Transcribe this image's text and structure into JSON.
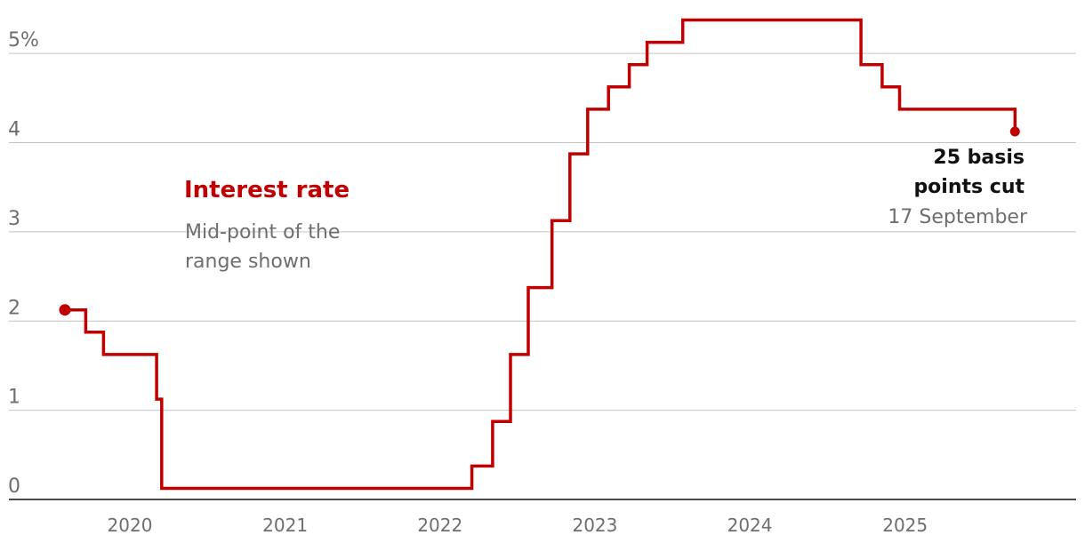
{
  "chart_data": {
    "type": "line",
    "step": true,
    "title": "",
    "xlabel": "",
    "ylabel": "",
    "ylim": [
      0,
      5.4
    ],
    "xlim": [
      "2019-03-01",
      "2026-03-01"
    ],
    "yticks": [
      {
        "value": 0,
        "label": "0"
      },
      {
        "value": 1,
        "label": "1"
      },
      {
        "value": 2,
        "label": "2"
      },
      {
        "value": 3,
        "label": "3"
      },
      {
        "value": 4,
        "label": "4"
      },
      {
        "value": 5,
        "label": "5%"
      }
    ],
    "xticks": [
      {
        "value": "2020-01-01",
        "label": "2020"
      },
      {
        "value": "2021-01-01",
        "label": "2021"
      },
      {
        "value": "2022-01-01",
        "label": "2022"
      },
      {
        "value": "2023-01-01",
        "label": "2023"
      },
      {
        "value": "2024-01-01",
        "label": "2024"
      },
      {
        "value": "2025-01-01",
        "label": "2025"
      }
    ],
    "grid": true,
    "legend": {
      "position": "top-left",
      "title": "Interest rate",
      "subtitle_lines": [
        "Mid-point of the",
        "range shown"
      ]
    },
    "annotation": {
      "title_lines": [
        "25 basis",
        "points cut"
      ],
      "date_label": "17 September"
    },
    "series": [
      {
        "color": "#c00000",
        "points": [
          {
            "date": "2019-08-01",
            "value": 2.125
          },
          {
            "date": "2019-09-19",
            "value": 1.875
          },
          {
            "date": "2019-10-31",
            "value": 1.625
          },
          {
            "date": "2020-03-04",
            "value": 1.125
          },
          {
            "date": "2020-03-16",
            "value": 0.125
          },
          {
            "date": "2022-03-17",
            "value": 0.375
          },
          {
            "date": "2022-05-05",
            "value": 0.875
          },
          {
            "date": "2022-06-16",
            "value": 1.625
          },
          {
            "date": "2022-07-28",
            "value": 2.375
          },
          {
            "date": "2022-09-22",
            "value": 3.125
          },
          {
            "date": "2022-11-03",
            "value": 3.875
          },
          {
            "date": "2022-12-15",
            "value": 4.375
          },
          {
            "date": "2023-02-02",
            "value": 4.625
          },
          {
            "date": "2023-03-23",
            "value": 4.875
          },
          {
            "date": "2023-05-04",
            "value": 5.125
          },
          {
            "date": "2023-07-27",
            "value": 5.375
          },
          {
            "date": "2024-09-19",
            "value": 4.875
          },
          {
            "date": "2024-11-08",
            "value": 4.625
          },
          {
            "date": "2024-12-19",
            "value": 4.375
          },
          {
            "date": "2025-09-17",
            "value": 4.125
          }
        ]
      }
    ]
  }
}
